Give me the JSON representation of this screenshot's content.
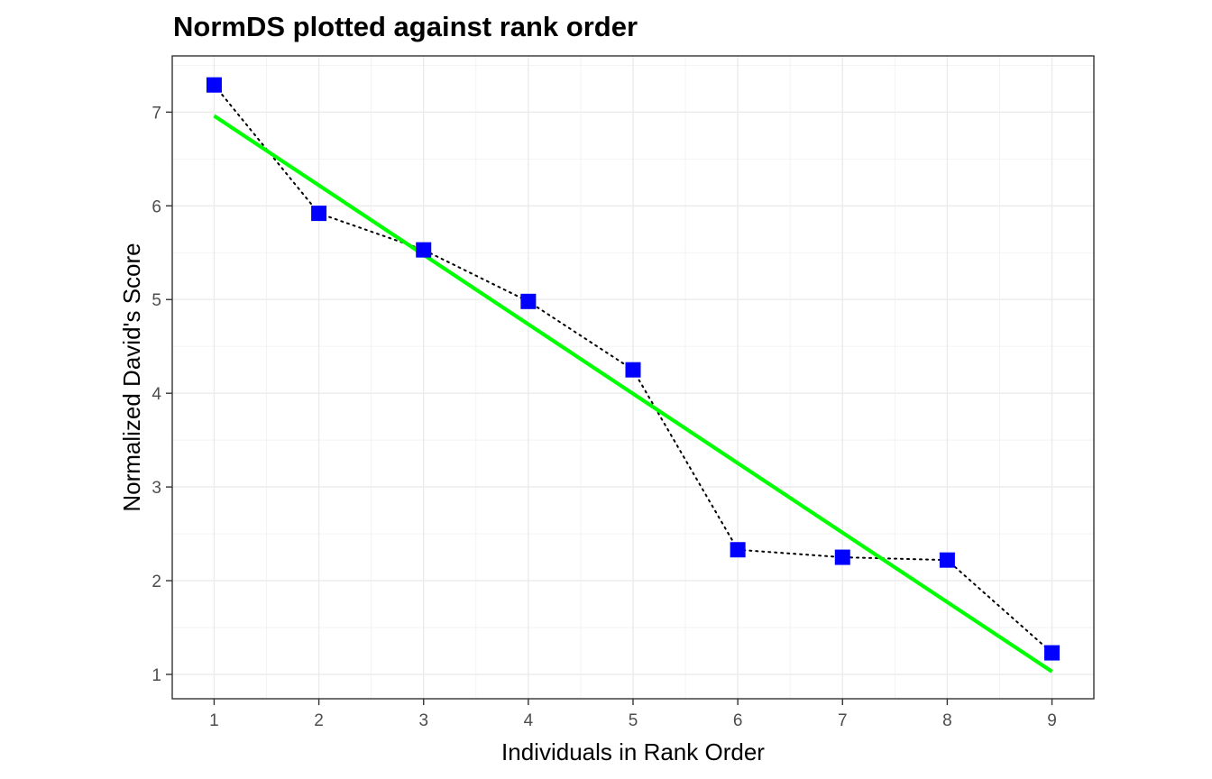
{
  "chart_data": {
    "type": "scatter",
    "title": "NormDS plotted against rank order",
    "xlabel": "Individuals in Rank Order",
    "ylabel": "Normalized David's Score",
    "xlim": [
      0.6,
      9.4
    ],
    "ylim": [
      0.74,
      7.6
    ],
    "x_ticks": [
      1,
      2,
      3,
      4,
      5,
      6,
      7,
      8,
      9
    ],
    "y_ticks": [
      1,
      2,
      3,
      4,
      5,
      6,
      7
    ],
    "grid": true,
    "series": [
      {
        "style": "points connected by dotted line",
        "marker": "square",
        "color": "#0000ff",
        "line_color": "#000000",
        "x": [
          1,
          2,
          3,
          4,
          5,
          6,
          7,
          8,
          9
        ],
        "y": [
          7.29,
          5.92,
          5.53,
          4.98,
          4.25,
          2.33,
          2.25,
          2.22,
          1.23
        ]
      },
      {
        "style": "linear fit line",
        "color": "#00ff00",
        "x": [
          1,
          9
        ],
        "y": [
          6.96,
          1.03
        ]
      }
    ]
  }
}
